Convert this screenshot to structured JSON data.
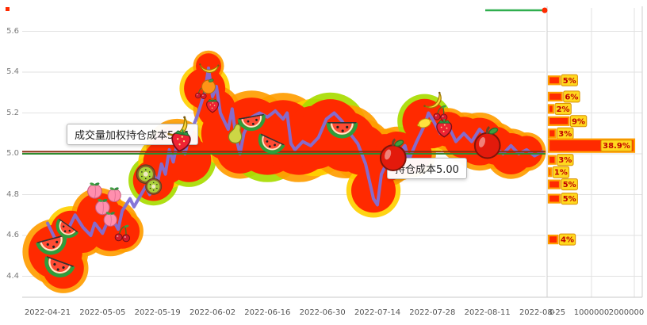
{
  "tooltips": {
    "vwap_label": "成交量加权持仓成本5.01",
    "cost_label": "持仓成本5.00"
  },
  "colors": {
    "grid": "#e2e2e2",
    "frame": "#c8c8c8",
    "bubble": "#ff2a00",
    "ring_orange": "#ff9d00",
    "ring_yellow": "#ffd000",
    "ring_green": "#a8dc00",
    "line": "#7f6fd6",
    "bar_border": "#ff9d00",
    "chip_bg": "#ffd81e",
    "chip_border": "#d98f00",
    "chip_text": "#c00000",
    "marker_green": "#2fae4e"
  },
  "chart_data": [
    {
      "type": "line",
      "name": "price-history-with-volume-bubbles",
      "x_axis": {
        "ticks": [
          "2022-04-21",
          "2022-05-05",
          "2022-05-19",
          "2022-06-02",
          "2022-06-16",
          "2022-06-30",
          "2022-07-14",
          "2022-07-28",
          "2022-08-11",
          "2022-08-25"
        ],
        "days_per_tick": 14
      },
      "y_axis": {
        "min": 4.3,
        "max": 5.7,
        "ticks": [
          5.6,
          5.4,
          5.2,
          5.0,
          4.8,
          4.6,
          4.4
        ]
      },
      "points": [
        [
          0,
          4.66
        ],
        [
          2,
          4.58
        ],
        [
          4,
          4.55
        ],
        [
          5,
          4.62
        ],
        [
          7,
          4.7
        ],
        [
          9,
          4.64
        ],
        [
          11,
          4.6
        ],
        [
          12,
          4.66
        ],
        [
          14,
          4.61
        ],
        [
          16,
          4.7
        ],
        [
          18,
          4.63
        ],
        [
          19,
          4.72
        ],
        [
          21,
          4.78
        ],
        [
          22,
          4.74
        ],
        [
          25,
          4.84
        ],
        [
          26,
          4.8
        ],
        [
          27,
          4.9
        ],
        [
          28,
          4.86
        ],
        [
          29,
          4.95
        ],
        [
          30,
          4.9
        ],
        [
          31,
          5.02
        ],
        [
          32,
          4.96
        ],
        [
          33,
          5.05
        ],
        [
          35,
          5.0
        ],
        [
          36,
          5.08
        ],
        [
          38,
          5.18
        ],
        [
          40,
          5.3
        ],
        [
          41,
          5.42
        ],
        [
          42,
          5.28
        ],
        [
          43,
          5.33
        ],
        [
          44,
          5.2
        ],
        [
          46,
          5.12
        ],
        [
          47,
          5.22
        ],
        [
          48,
          5.08
        ],
        [
          49,
          5.0
        ],
        [
          50,
          5.1
        ],
        [
          52,
          5.18
        ],
        [
          54,
          5.2
        ],
        [
          56,
          5.18
        ],
        [
          58,
          5.21
        ],
        [
          60,
          5.17
        ],
        [
          61,
          5.2
        ],
        [
          62,
          5.05
        ],
        [
          63,
          5.02
        ],
        [
          65,
          5.06
        ],
        [
          67,
          5.04
        ],
        [
          69,
          5.08
        ],
        [
          71,
          5.17
        ],
        [
          73,
          5.2
        ],
        [
          75,
          5.16
        ],
        [
          77,
          5.1
        ],
        [
          79,
          5.05
        ],
        [
          81,
          4.95
        ],
        [
          83,
          4.78
        ],
        [
          84,
          4.75
        ],
        [
          85,
          4.9
        ],
        [
          87,
          4.98
        ],
        [
          88,
          5.02
        ],
        [
          89,
          4.99
        ],
        [
          91,
          5.04
        ],
        [
          92,
          4.97
        ],
        [
          94,
          5.06
        ],
        [
          96,
          5.14
        ],
        [
          97,
          5.2
        ],
        [
          98,
          5.17
        ],
        [
          100,
          5.1
        ],
        [
          102,
          5.14
        ],
        [
          104,
          5.06
        ],
        [
          106,
          5.1
        ],
        [
          108,
          5.06
        ],
        [
          110,
          5.12
        ],
        [
          112,
          5.08
        ],
        [
          114,
          5.03
        ],
        [
          116,
          5.0
        ],
        [
          118,
          5.04
        ],
        [
          120,
          5.0
        ],
        [
          122,
          5.02
        ],
        [
          124,
          4.99
        ],
        [
          126,
          5.01
        ]
      ],
      "bubbles": [
        [
          2,
          4.52,
          34,
          "o"
        ],
        [
          4,
          4.44,
          26,
          "o"
        ],
        [
          6,
          4.62,
          26,
          "y"
        ],
        [
          9,
          4.6,
          22,
          "o"
        ],
        [
          13,
          4.7,
          28,
          "o"
        ],
        [
          16,
          4.64,
          30,
          "o"
        ],
        [
          19,
          4.62,
          22,
          "o"
        ],
        [
          27,
          4.87,
          26,
          "g"
        ],
        [
          30,
          4.96,
          28,
          "y"
        ],
        [
          33,
          5.02,
          32,
          "o"
        ],
        [
          36,
          4.97,
          28,
          "g"
        ],
        [
          40,
          5.32,
          26,
          "y"
        ],
        [
          41,
          5.43,
          16,
          "o"
        ],
        [
          43,
          5.22,
          24,
          "o"
        ],
        [
          46,
          5.1,
          34,
          "y"
        ],
        [
          49,
          5.02,
          30,
          "o"
        ],
        [
          52,
          5.12,
          40,
          "o"
        ],
        [
          56,
          5.06,
          42,
          "g"
        ],
        [
          60,
          5.1,
          42,
          "o"
        ],
        [
          64,
          5.06,
          42,
          "o"
        ],
        [
          68,
          5.08,
          40,
          "y"
        ],
        [
          72,
          5.12,
          38,
          "g"
        ],
        [
          76,
          5.06,
          38,
          "o"
        ],
        [
          80,
          5.02,
          32,
          "o"
        ],
        [
          83,
          4.82,
          28,
          "y"
        ],
        [
          86,
          4.98,
          30,
          "o"
        ],
        [
          89,
          5.0,
          28,
          "o"
        ],
        [
          93,
          5.0,
          24,
          "o"
        ],
        [
          96,
          5.16,
          28,
          "g"
        ],
        [
          98,
          5.12,
          24,
          "y"
        ],
        [
          102,
          5.12,
          22,
          "o"
        ],
        [
          106,
          5.08,
          26,
          "o"
        ],
        [
          110,
          5.06,
          30,
          "o"
        ],
        [
          114,
          5.04,
          24,
          "o"
        ],
        [
          118,
          5.0,
          26,
          "o"
        ],
        [
          122,
          5.01,
          20,
          "o"
        ]
      ],
      "fruits": [
        [
          "watermelon",
          1,
          4.57,
          38,
          -15
        ],
        [
          "watermelon",
          3,
          4.46,
          38,
          20
        ],
        [
          "watermelon",
          5,
          4.64,
          30,
          35
        ],
        [
          "peach",
          12,
          4.82,
          24,
          0
        ],
        [
          "peach",
          14,
          4.74,
          24,
          0
        ],
        [
          "peach",
          16,
          4.68,
          22,
          0
        ],
        [
          "peach",
          17,
          4.8,
          22,
          0
        ],
        [
          "cherry",
          19,
          4.61,
          24,
          0
        ],
        [
          "kiwi",
          25,
          4.9,
          28,
          0
        ],
        [
          "kiwi",
          27,
          4.84,
          24,
          0
        ],
        [
          "banana",
          33,
          5.13,
          30,
          -20
        ],
        [
          "strawberry",
          34,
          5.07,
          34,
          10
        ],
        [
          "cherry",
          39,
          5.3,
          18,
          0
        ],
        [
          "banana",
          41,
          5.43,
          24,
          30
        ],
        [
          "orange",
          41,
          5.33,
          22,
          0
        ],
        [
          "strawberry",
          42,
          5.24,
          22,
          0
        ],
        [
          "pear",
          48,
          5.1,
          28,
          15
        ],
        [
          "watermelon",
          52,
          5.17,
          34,
          -10
        ],
        [
          "watermelon",
          57,
          5.06,
          34,
          25
        ],
        [
          "watermelon",
          75,
          5.14,
          38,
          0
        ],
        [
          "apple",
          88,
          4.99,
          40,
          0
        ],
        [
          "lemon",
          96,
          5.15,
          20,
          0
        ],
        [
          "banana",
          98,
          5.26,
          26,
          -15
        ],
        [
          "cherry",
          100,
          5.2,
          22,
          0
        ],
        [
          "strawberry",
          101,
          5.13,
          28,
          0
        ],
        [
          "apple",
          112,
          5.05,
          40,
          0
        ]
      ],
      "hlines": [
        {
          "value": 5.01,
          "color": "#8a2b0f",
          "name": "vwap-cost-line"
        },
        {
          "value": 5.0,
          "color": "#2e8b2e",
          "name": "holding-cost-line"
        }
      ]
    },
    {
      "type": "bar",
      "name": "volume-profile",
      "orientation": "horizontal",
      "x_axis": {
        "ticks": [
          "0",
          "1000000",
          "2000000"
        ],
        "max": 2200000
      },
      "bars": [
        {
          "price": 5.36,
          "pct": "5%",
          "volume": 260000
        },
        {
          "price": 5.28,
          "pct": "6%",
          "volume": 310000
        },
        {
          "price": 5.22,
          "pct": "2%",
          "volume": 110000
        },
        {
          "price": 5.16,
          "pct": "9%",
          "volume": 470000
        },
        {
          "price": 5.1,
          "pct": "3%",
          "volume": 160000
        },
        {
          "price": 5.04,
          "pct": "38.9%",
          "volume": 2000000
        },
        {
          "price": 4.97,
          "pct": "3%",
          "volume": 160000
        },
        {
          "price": 4.91,
          "pct": "1%",
          "volume": 60000
        },
        {
          "price": 4.85,
          "pct": "5%",
          "volume": 260000
        },
        {
          "price": 4.78,
          "pct": "5%",
          "volume": 260000
        },
        {
          "price": 4.58,
          "pct": "4%",
          "volume": 210000
        }
      ]
    }
  ]
}
